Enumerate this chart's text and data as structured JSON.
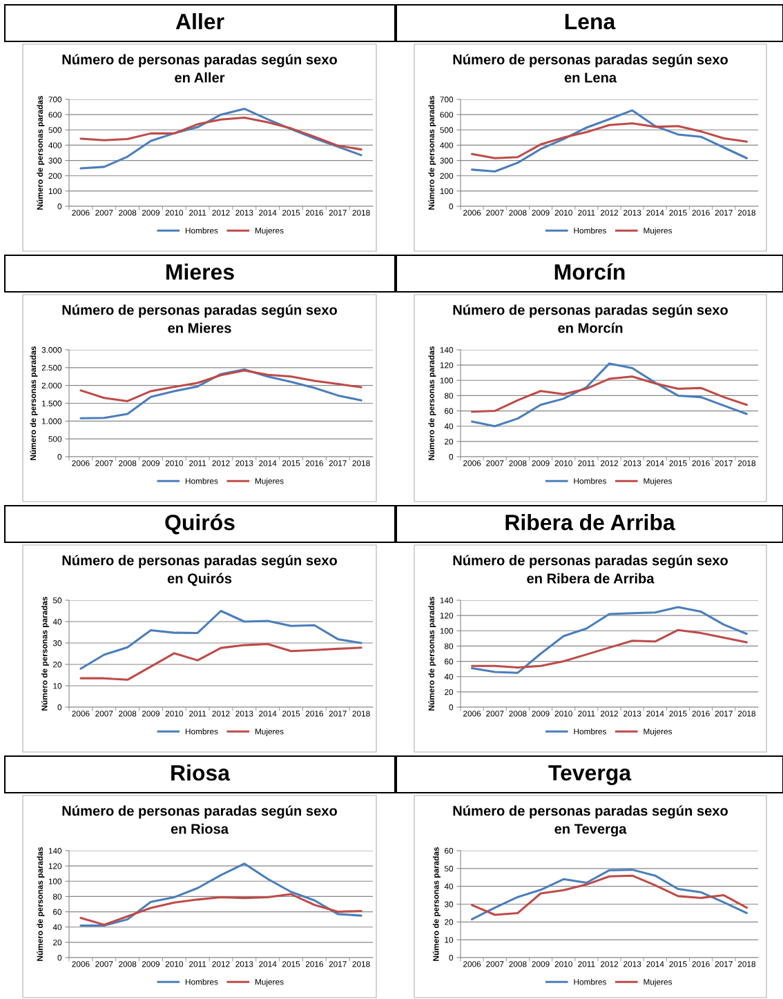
{
  "chart_data": [
    {
      "type": "line",
      "annotations": [
        "Aller"
      ],
      "title": "Número de personas paradas según sexo\nen Aller",
      "ylabel": "Número de personas paradas",
      "categories": [
        "2006",
        "2007",
        "2008",
        "2009",
        "2010",
        "2011",
        "2012",
        "2013",
        "2014",
        "2015",
        "2016",
        "2017",
        "2018"
      ],
      "ylim": [
        0,
        700
      ],
      "yticks": [
        0,
        100,
        200,
        300,
        400,
        500,
        600,
        700
      ],
      "grid": "y",
      "legend": "bottom",
      "series": [
        {
          "name": "Hombres",
          "color": "#4a7ebb",
          "values": [
            248,
            258,
            325,
            428,
            478,
            518,
            600,
            638,
            570,
            505,
            445,
            390,
            335
          ]
        },
        {
          "name": "Mujeres",
          "color": "#be4b48",
          "values": [
            443,
            432,
            440,
            477,
            477,
            537,
            568,
            580,
            550,
            510,
            455,
            397,
            372
          ]
        }
      ]
    },
    {
      "type": "line",
      "annotations": [
        "Lena"
      ],
      "title": "Número de personas paradas según sexo\nen Lena",
      "ylabel": "Número de personas paradas",
      "categories": [
        "2006",
        "2007",
        "2008",
        "2009",
        "2010",
        "2011",
        "2012",
        "2013",
        "2014",
        "2015",
        "2016",
        "2017",
        "2018"
      ],
      "ylim": [
        0,
        700
      ],
      "yticks": [
        0,
        100,
        200,
        300,
        400,
        500,
        600,
        700
      ],
      "grid": "y",
      "legend": "bottom",
      "series": [
        {
          "name": "Hombres",
          "color": "#4a7ebb",
          "values": [
            240,
            228,
            285,
            375,
            440,
            515,
            570,
            628,
            525,
            470,
            455,
            385,
            315
          ]
        },
        {
          "name": "Mujeres",
          "color": "#be4b48",
          "values": [
            342,
            315,
            322,
            405,
            450,
            485,
            532,
            543,
            520,
            525,
            490,
            445,
            423
          ]
        }
      ]
    },
    {
      "type": "line",
      "annotations": [
        "Mieres"
      ],
      "title": "Número de personas paradas según sexo\nen Mieres",
      "ylabel": "Número de personas paradas",
      "categories": [
        "2006",
        "2007",
        "2008",
        "2009",
        "2010",
        "2011",
        "2012",
        "2013",
        "2014",
        "2015",
        "2016",
        "2017",
        "2018"
      ],
      "ylim": [
        0,
        3000
      ],
      "yticks": [
        0,
        500,
        {
          "value": 1000,
          "label": "1.000"
        },
        {
          "value": 1500,
          "label": "1.500"
        },
        {
          "value": 2000,
          "label": "2.000"
        },
        {
          "value": 2500,
          "label": "2.500"
        },
        {
          "value": 3000,
          "label": "3.000"
        }
      ],
      "grid": "y",
      "legend": "bottom",
      "series": [
        {
          "name": "Hombres",
          "color": "#4a7ebb",
          "values": [
            1080,
            1090,
            1200,
            1680,
            1840,
            1970,
            2320,
            2450,
            2250,
            2100,
            1930,
            1720,
            1580
          ]
        },
        {
          "name": "Mujeres",
          "color": "#be4b48",
          "values": [
            1860,
            1650,
            1560,
            1840,
            1960,
            2070,
            2290,
            2420,
            2300,
            2250,
            2130,
            2040,
            1950
          ]
        }
      ]
    },
    {
      "type": "line",
      "annotations": [
        "Morcín"
      ],
      "title": "Número de personas paradas según sexo\nen Morcín",
      "ylabel": "Número de personas paradas",
      "categories": [
        "2006",
        "2007",
        "2008",
        "2009",
        "2010",
        "2011",
        "2012",
        "2013",
        "2014",
        "2015",
        "2016",
        "2017",
        "2018"
      ],
      "ylim": [
        0,
        140
      ],
      "yticks": [
        0,
        20,
        40,
        60,
        80,
        100,
        120,
        140
      ],
      "grid": "y",
      "legend": "bottom",
      "series": [
        {
          "name": "Hombres",
          "color": "#4a7ebb",
          "values": [
            46,
            40,
            50,
            68,
            76,
            91,
            122,
            116,
            97,
            80,
            78,
            67,
            56
          ]
        },
        {
          "name": "Mujeres",
          "color": "#be4b48",
          "values": [
            59,
            60,
            74,
            86,
            82,
            89,
            102,
            105,
            96,
            89,
            90,
            78,
            68
          ]
        }
      ]
    },
    {
      "type": "line",
      "annotations": [
        "Quirós"
      ],
      "title": "Número de personas paradas según sexo\nen Quirós",
      "ylabel": "Número de personas paradas",
      "categories": [
        "2006",
        "2007",
        "2008",
        "2009",
        "2010",
        "2011",
        "2012",
        "2013",
        "2014",
        "2015",
        "2016",
        "2017",
        "2018"
      ],
      "ylim": [
        0,
        50
      ],
      "yticks": [
        0,
        10,
        20,
        30,
        40,
        50
      ],
      "grid": "y",
      "legend": "bottom",
      "series": [
        {
          "name": "Hombres",
          "color": "#4a7ebb",
          "values": [
            18,
            24.5,
            28,
            36,
            34.8,
            34.7,
            45,
            40,
            40.3,
            38,
            38.3,
            31.8,
            30
          ]
        },
        {
          "name": "Mujeres",
          "color": "#be4b48",
          "values": [
            13.5,
            13.5,
            12.8,
            19,
            25.2,
            21.9,
            27.7,
            29,
            29.5,
            26.2,
            26.7,
            27.3,
            27.8
          ]
        }
      ]
    },
    {
      "type": "line",
      "annotations": [
        "Ribera de Arriba"
      ],
      "title": "Número de personas paradas según sexo\nen Ribera de Arriba",
      "ylabel": "Número de personas paradas",
      "categories": [
        "2006",
        "2007",
        "2008",
        "2009",
        "2010",
        "2011",
        "2012",
        "2013",
        "2014",
        "2015",
        "2016",
        "2017",
        "2018"
      ],
      "ylim": [
        0,
        140
      ],
      "yticks": [
        0,
        20,
        40,
        60,
        80,
        100,
        120,
        140
      ],
      "grid": "y",
      "legend": "bottom",
      "series": [
        {
          "name": "Hombres",
          "color": "#4a7ebb",
          "values": [
            51,
            46,
            45,
            70,
            93,
            103,
            122,
            123,
            124,
            131,
            125,
            108,
            96
          ]
        },
        {
          "name": "Mujeres",
          "color": "#be4b48",
          "values": [
            54,
            54,
            52,
            54,
            60,
            69,
            78,
            87,
            86,
            101,
            97,
            91,
            85
          ]
        }
      ]
    },
    {
      "type": "line",
      "annotations": [
        "Riosa"
      ],
      "title": "Número de personas paradas según sexo\nen Riosa",
      "ylabel": "Número de personas paradas",
      "categories": [
        "2006",
        "2007",
        "2008",
        "2009",
        "2010",
        "2011",
        "2012",
        "2013",
        "2014",
        "2015",
        "2016",
        "2017",
        "2018"
      ],
      "ylim": [
        0,
        140
      ],
      "yticks": [
        0,
        20,
        40,
        60,
        80,
        100,
        120,
        140
      ],
      "grid": "y",
      "legend": "bottom",
      "series": [
        {
          "name": "Hombres",
          "color": "#4a7ebb",
          "values": [
            42,
            42,
            50,
            73,
            79,
            91,
            108,
            123,
            103,
            86,
            75,
            57,
            55
          ]
        },
        {
          "name": "Mujeres",
          "color": "#be4b48",
          "values": [
            52,
            43,
            54,
            65,
            72,
            76,
            79,
            78,
            79,
            83,
            69,
            60,
            61
          ]
        }
      ]
    },
    {
      "type": "line",
      "annotations": [
        "Teverga"
      ],
      "title": "Número de personas paradas según sexo\nen Teverga",
      "ylabel": "Número de personas paradas",
      "categories": [
        "2006",
        "2007",
        "2008",
        "2009",
        "2010",
        "2011",
        "2012",
        "2013",
        "2014",
        "2015",
        "2016",
        "2017",
        "2018"
      ],
      "ylim": [
        0,
        60
      ],
      "yticks": [
        0,
        10,
        20,
        30,
        40,
        50,
        60
      ],
      "grid": "y",
      "legend": "bottom",
      "series": [
        {
          "name": "Hombres",
          "color": "#4a7ebb",
          "values": [
            21.5,
            28,
            34,
            38,
            44,
            42,
            49,
            49.3,
            46,
            38.5,
            36.7,
            31,
            25
          ]
        },
        {
          "name": "Mujeres",
          "color": "#be4b48",
          "values": [
            29.5,
            24,
            25,
            36,
            37.8,
            41,
            45.6,
            46,
            40.6,
            34.5,
            33.5,
            35,
            28
          ]
        }
      ]
    }
  ]
}
